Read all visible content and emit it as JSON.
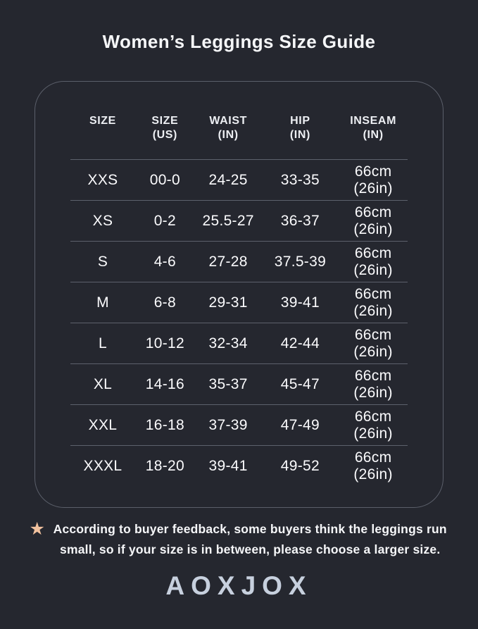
{
  "title": "Women’s Leggings Size Guide",
  "colors": {
    "background": "#25272F",
    "panel_border": "#5B5F6A",
    "row_separator": "#8C929E",
    "text_primary": "#FBFBFD",
    "star_accent": "#F1C19E",
    "logo": "#C7D0DE"
  },
  "chart_data": {
    "type": "table",
    "title": "Women’s Leggings Size Guide",
    "columns": [
      "SIZE",
      "SIZE (US)",
      "WAIST (IN)",
      "HIP (IN)",
      "INSEAM (IN)"
    ],
    "rows": [
      [
        "XXS",
        "00-0",
        "24-25",
        "33-35",
        "66cm (26in)"
      ],
      [
        "XS",
        "0-2",
        "25.5-27",
        "36-37",
        "66cm (26in)"
      ],
      [
        "S",
        "4-6",
        "27-28",
        "37.5-39",
        "66cm (26in)"
      ],
      [
        "M",
        "6-8",
        "29-31",
        "39-41",
        "66cm (26in)"
      ],
      [
        "L",
        "10-12",
        "32-34",
        "42-44",
        "66cm (26in)"
      ],
      [
        "XL",
        "14-16",
        "35-37",
        "45-47",
        "66cm (26in)"
      ],
      [
        "XXL",
        "16-18",
        "37-39",
        "47-49",
        "66cm (26in)"
      ],
      [
        "XXXL",
        "18-20",
        "39-41",
        "49-52",
        "66cm (26in)"
      ]
    ]
  },
  "table": {
    "headers": [
      {
        "l1": "SIZE",
        "l2": ""
      },
      {
        "l1": "SIZE",
        "l2": "(US)"
      },
      {
        "l1": "WAIST",
        "l2": "(IN)"
      },
      {
        "l1": "HIP",
        "l2": "(IN)"
      },
      {
        "l1": "INSEAM",
        "l2": "(IN)"
      }
    ],
    "rows": [
      {
        "size": "XXS",
        "size_us": "00-0",
        "waist": "24-25",
        "hip": "33-35",
        "inseam1": "66cm",
        "inseam2": "(26in)"
      },
      {
        "size": "XS",
        "size_us": "0-2",
        "waist": "25.5-27",
        "hip": "36-37",
        "inseam1": "66cm",
        "inseam2": "(26in)"
      },
      {
        "size": "S",
        "size_us": "4-6",
        "waist": "27-28",
        "hip": "37.5-39",
        "inseam1": "66cm",
        "inseam2": "(26in)"
      },
      {
        "size": "M",
        "size_us": "6-8",
        "waist": "29-31",
        "hip": "39-41",
        "inseam1": "66cm",
        "inseam2": "(26in)"
      },
      {
        "size": "L",
        "size_us": "10-12",
        "waist": "32-34",
        "hip": "42-44",
        "inseam1": "66cm",
        "inseam2": "(26in)"
      },
      {
        "size": "XL",
        "size_us": "14-16",
        "waist": "35-37",
        "hip": "45-47",
        "inseam1": "66cm",
        "inseam2": "(26in)"
      },
      {
        "size": "XXL",
        "size_us": "16-18",
        "waist": "37-39",
        "hip": "47-49",
        "inseam1": "66cm",
        "inseam2": "(26in)"
      },
      {
        "size": "XXXL",
        "size_us": "18-20",
        "waist": "39-41",
        "hip": "49-52",
        "inseam1": "66cm",
        "inseam2": "(26in)"
      }
    ]
  },
  "note": {
    "star": "★",
    "text": "According to buyer feedback, some buyers think the leggings run small, so if your size is in between, please choose a larger size."
  },
  "brand": "AOXJOX"
}
